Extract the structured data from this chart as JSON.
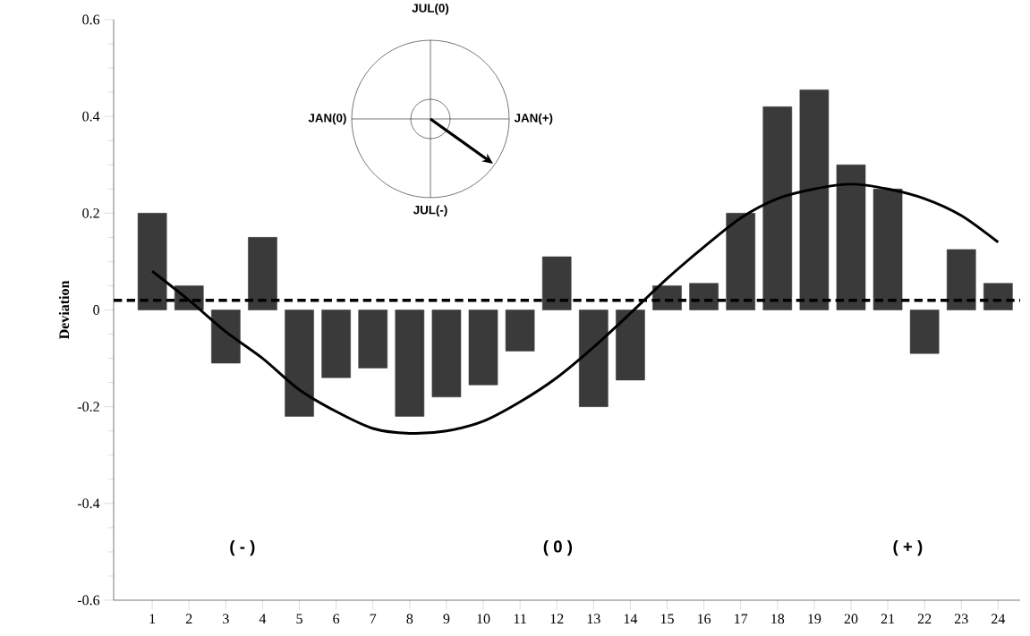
{
  "chart_data": {
    "type": "bar",
    "ylabel": "Deviation",
    "categories": [
      "1",
      "2",
      "3",
      "4",
      "5",
      "6",
      "7",
      "8",
      "9",
      "10",
      "11",
      "12",
      "13",
      "14",
      "15",
      "16",
      "17",
      "18",
      "19",
      "20",
      "21",
      "22",
      "23",
      "24"
    ],
    "series": [
      {
        "color": "#3a3a3a",
        "values": [
          0.2,
          0.05,
          -0.11,
          0.15,
          -0.22,
          -0.14,
          -0.12,
          -0.22,
          -0.18,
          -0.155,
          -0.085,
          0.11,
          -0.2,
          -0.145,
          0.05,
          0.055,
          0.2,
          0.42,
          0.455,
          0.3,
          0.25,
          -0.09,
          0.125,
          0.055
        ]
      },
      {
        "type": "line",
        "color": "#000000",
        "values": [
          0.08,
          0.02,
          -0.045,
          -0.1,
          -0.165,
          -0.21,
          -0.245,
          -0.255,
          -0.25,
          -0.23,
          -0.19,
          -0.14,
          -0.077,
          -0.007,
          0.065,
          0.13,
          0.19,
          0.23,
          0.25,
          0.26,
          0.25,
          0.23,
          0.195,
          0.14
        ]
      }
    ],
    "ylim": [
      -0.6,
      0.6
    ],
    "yticks": [
      -0.6,
      -0.4,
      -0.2,
      0,
      0.2,
      0.4,
      0.6
    ],
    "ref_lines": [
      {
        "axis": "y",
        "value": 0.02,
        "line_style": "dashed",
        "color": "#000000"
      }
    ],
    "annotations": [
      "( - )",
      "( 0 )",
      "( + )",
      "JUL(0)",
      "JAN(0)",
      "JAN(+)",
      "JUL(-)"
    ],
    "grid": false
  }
}
